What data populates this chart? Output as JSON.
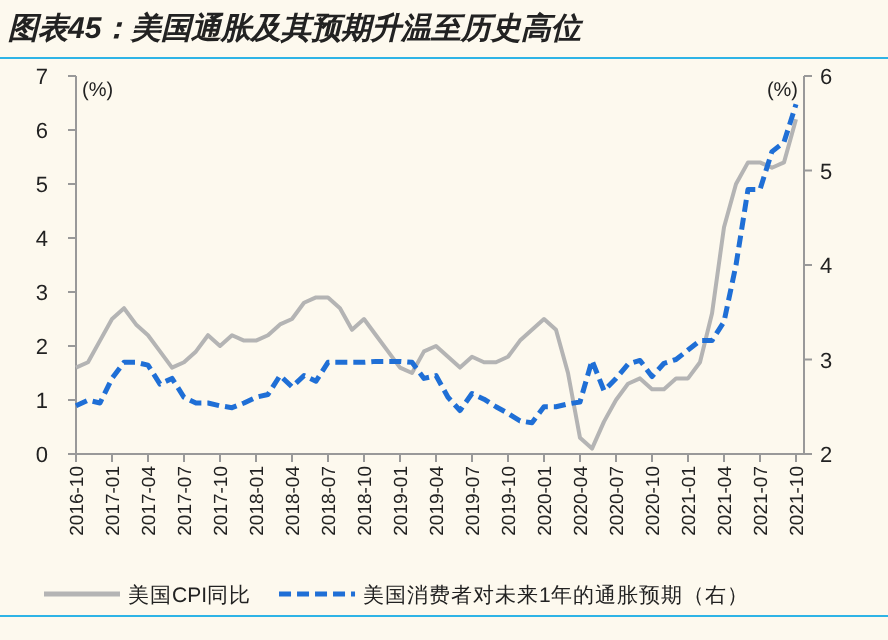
{
  "chart_data": {
    "type": "line",
    "title": "图表45：美国通胀及其预期升温至历史高位",
    "ylabel": "(%)",
    "y2label": "(%)",
    "categories": [
      "2016-10",
      null,
      null,
      "2017-01",
      null,
      null,
      "2017-04",
      null,
      null,
      "2017-07",
      null,
      null,
      "2017-10",
      null,
      null,
      "2018-01",
      null,
      null,
      "2018-04",
      null,
      null,
      "2018-07",
      null,
      null,
      "2018-10",
      null,
      null,
      "2019-01",
      null,
      null,
      "2019-04",
      null,
      null,
      "2019-07",
      null,
      null,
      "2019-10",
      null,
      null,
      "2020-01",
      null,
      null,
      "2020-04",
      null,
      null,
      "2020-07",
      null,
      null,
      "2020-10",
      null,
      null,
      "2021-01",
      null,
      null,
      "2021-04",
      null,
      null,
      "2021-07",
      null,
      null,
      "2021-10"
    ],
    "series": [
      {
        "name": "美国CPI同比",
        "color": "#b4b4b4",
        "line_style": "solid",
        "values": [
          1.6,
          1.7,
          2.1,
          2.5,
          2.7,
          2.4,
          2.2,
          1.9,
          1.6,
          1.7,
          1.9,
          2.2,
          2.0,
          2.2,
          2.1,
          2.1,
          2.2,
          2.4,
          2.5,
          2.8,
          2.9,
          2.9,
          2.7,
          2.3,
          2.5,
          2.2,
          1.9,
          1.6,
          1.5,
          1.9,
          2.0,
          1.8,
          1.6,
          1.8,
          1.7,
          1.7,
          1.8,
          2.1,
          2.3,
          2.5,
          2.3,
          1.5,
          0.3,
          0.1,
          0.6,
          1.0,
          1.3,
          1.4,
          1.2,
          1.2,
          1.4,
          1.4,
          1.7,
          2.6,
          4.2,
          5.0,
          5.4,
          5.4,
          5.3,
          5.4,
          6.2
        ]
      },
      {
        "name": "美国消费者对未来1年的通胀预期（右）",
        "color": "#1f6fd6",
        "line_style": "dashed",
        "axis": "y2",
        "values": [
          2.51,
          2.57,
          2.54,
          2.8,
          2.97,
          2.97,
          2.94,
          2.74,
          2.8,
          2.6,
          2.54,
          2.54,
          2.51,
          2.49,
          2.54,
          2.6,
          2.63,
          2.83,
          2.71,
          2.83,
          2.77,
          2.97,
          2.97,
          2.97,
          2.97,
          2.98,
          2.98,
          2.98,
          2.97,
          2.8,
          2.83,
          2.6,
          2.46,
          2.64,
          2.58,
          2.5,
          2.43,
          2.35,
          2.33,
          2.5,
          2.5,
          2.53,
          2.55,
          2.99,
          2.67,
          2.8,
          2.95,
          2.99,
          2.82,
          2.96,
          3.0,
          3.1,
          3.2,
          3.2,
          3.4,
          4.0,
          4.8,
          4.8,
          5.2,
          5.3,
          5.7
        ]
      }
    ],
    "ylim": [
      0,
      7
    ],
    "yticks": [
      0,
      1,
      2,
      3,
      4,
      5,
      6,
      7
    ],
    "y2lim": [
      2,
      6
    ],
    "y2ticks": [
      2,
      3,
      4,
      5,
      6
    ],
    "legend": "bottom"
  }
}
